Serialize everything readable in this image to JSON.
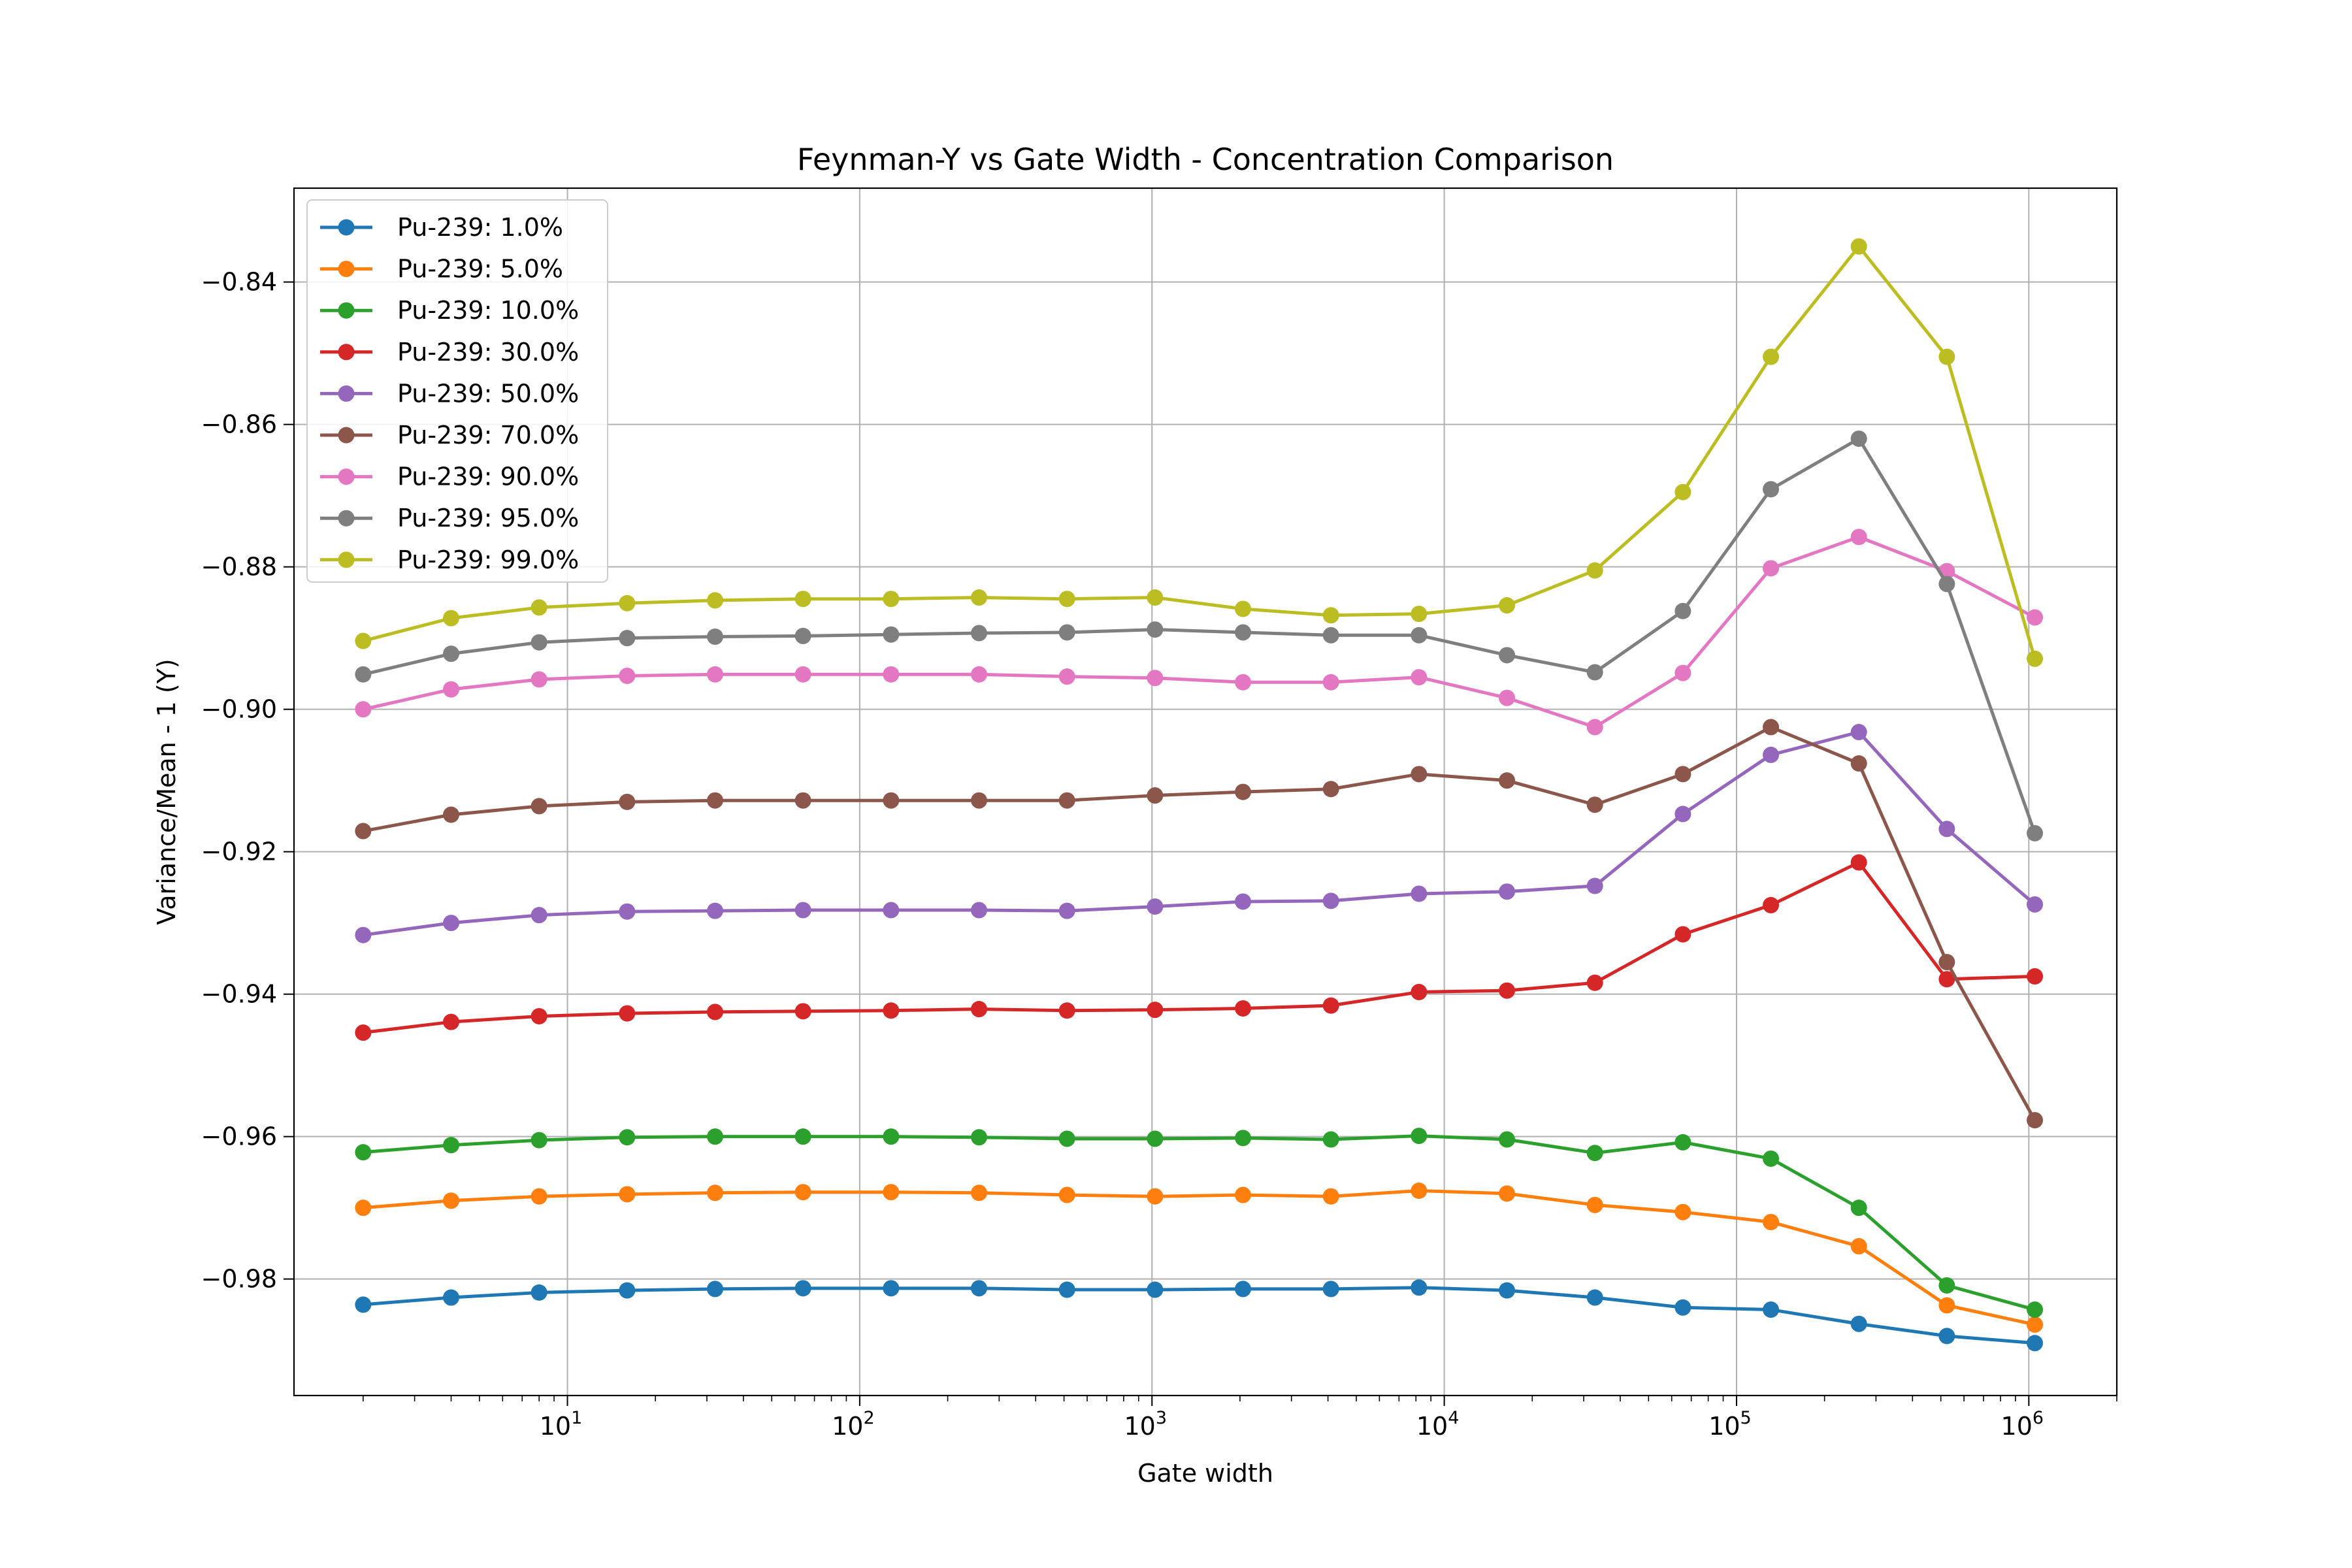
{
  "chart_data": {
    "type": "line",
    "title": "Feynman-Y vs Gate Width - Concentration Comparison",
    "xlabel": "Gate width",
    "ylabel": "Variance/Mean - 1 (Y)",
    "x_scale": "log",
    "xlim": [
      1.16,
      2000000
    ],
    "ylim": [
      -0.99636,
      -0.82682
    ],
    "grid": true,
    "legend_position": "upper left",
    "x": [
      2,
      4,
      8,
      16,
      32,
      64,
      128,
      256,
      512,
      1024,
      2048,
      4096,
      8192,
      16384,
      32768,
      65536,
      131072,
      262144,
      524288,
      1048576
    ],
    "x_ticks": [
      {
        "value": 10,
        "base": "10",
        "exp": "1"
      },
      {
        "value": 100,
        "base": "10",
        "exp": "2"
      },
      {
        "value": 1000,
        "base": "10",
        "exp": "3"
      },
      {
        "value": 10000,
        "base": "10",
        "exp": "4"
      },
      {
        "value": 100000,
        "base": "10",
        "exp": "5"
      },
      {
        "value": 1000000,
        "base": "10",
        "exp": "6"
      }
    ],
    "y_ticks": [
      {
        "value": -0.84,
        "label": "−0.84"
      },
      {
        "value": -0.86,
        "label": "−0.86"
      },
      {
        "value": -0.88,
        "label": "−0.88"
      },
      {
        "value": -0.9,
        "label": "−0.90"
      },
      {
        "value": -0.92,
        "label": "−0.92"
      },
      {
        "value": -0.94,
        "label": "−0.94"
      },
      {
        "value": -0.96,
        "label": "−0.96"
      },
      {
        "value": -0.98,
        "label": "−0.98"
      }
    ],
    "series": [
      {
        "name": "Pu-239: 1.0%",
        "color": "#1f77b4",
        "values": [
          -0.9836,
          -0.9826,
          -0.9819,
          -0.9816,
          -0.9814,
          -0.9813,
          -0.9813,
          -0.9813,
          -0.9815,
          -0.9815,
          -0.9814,
          -0.9814,
          -0.9812,
          -0.9816,
          -0.9826,
          -0.984,
          -0.9843,
          -0.9863,
          -0.988,
          -0.989
        ]
      },
      {
        "name": "Pu-239: 5.0%",
        "color": "#ff7f0e",
        "values": [
          -0.97,
          -0.969,
          -0.9684,
          -0.9681,
          -0.9679,
          -0.9678,
          -0.9678,
          -0.9679,
          -0.9682,
          -0.9684,
          -0.9682,
          -0.9684,
          -0.9676,
          -0.968,
          -0.9696,
          -0.9706,
          -0.972,
          -0.9754,
          -0.9837,
          -0.9864
        ]
      },
      {
        "name": "Pu-239: 10.0%",
        "color": "#2ca02c",
        "values": [
          -0.9622,
          -0.9612,
          -0.9605,
          -0.9601,
          -0.96,
          -0.96,
          -0.96,
          -0.9601,
          -0.9603,
          -0.9603,
          -0.9602,
          -0.9604,
          -0.9599,
          -0.9604,
          -0.9623,
          -0.9608,
          -0.9631,
          -0.97,
          -0.9809,
          -0.9843
        ]
      },
      {
        "name": "Pu-239: 30.0%",
        "color": "#d62728",
        "values": [
          -0.9454,
          -0.9439,
          -0.9431,
          -0.9427,
          -0.9425,
          -0.9424,
          -0.9423,
          -0.9421,
          -0.9423,
          -0.9422,
          -0.942,
          -0.9416,
          -0.9397,
          -0.9395,
          -0.9384,
          -0.9316,
          -0.9275,
          -0.9215,
          -0.9379,
          -0.9375
        ]
      },
      {
        "name": "Pu-239: 50.0%",
        "color": "#9467bd",
        "values": [
          -0.9317,
          -0.93,
          -0.9289,
          -0.9284,
          -0.9283,
          -0.9282,
          -0.9282,
          -0.9282,
          -0.9283,
          -0.9277,
          -0.927,
          -0.9269,
          -0.9259,
          -0.9256,
          -0.9248,
          -0.9147,
          -0.9064,
          -0.9032,
          -0.9168,
          -0.9274
        ]
      },
      {
        "name": "Pu-239: 70.0%",
        "color": "#8c564b",
        "values": [
          -0.9171,
          -0.9148,
          -0.9136,
          -0.913,
          -0.9128,
          -0.9128,
          -0.9128,
          -0.9128,
          -0.9128,
          -0.9121,
          -0.9116,
          -0.9112,
          -0.9091,
          -0.91,
          -0.9134,
          -0.9091,
          -0.9025,
          -0.9076,
          -0.9355,
          -0.9577
        ]
      },
      {
        "name": "Pu-239: 90.0%",
        "color": "#e377c2",
        "values": [
          -0.9,
          -0.8972,
          -0.8958,
          -0.8953,
          -0.8951,
          -0.8951,
          -0.8951,
          -0.8951,
          -0.8954,
          -0.8956,
          -0.8962,
          -0.8962,
          -0.8955,
          -0.8984,
          -0.9025,
          -0.8949,
          -0.8802,
          -0.8758,
          -0.8806,
          -0.8871
        ]
      },
      {
        "name": "Pu-239: 95.0%",
        "color": "#7f7f7f",
        "values": [
          -0.8951,
          -0.8922,
          -0.8906,
          -0.89,
          -0.8898,
          -0.8897,
          -0.8895,
          -0.8893,
          -0.8892,
          -0.8888,
          -0.8892,
          -0.8896,
          -0.8896,
          -0.8924,
          -0.8948,
          -0.8862,
          -0.8691,
          -0.862,
          -0.8824,
          -0.9174
        ]
      },
      {
        "name": "Pu-239: 99.0%",
        "color": "#bcbd22",
        "values": [
          -0.8904,
          -0.8872,
          -0.8857,
          -0.8851,
          -0.8847,
          -0.8845,
          -0.8845,
          -0.8843,
          -0.8845,
          -0.8843,
          -0.8859,
          -0.8868,
          -0.8866,
          -0.8854,
          -0.8805,
          -0.8695,
          -0.8505,
          -0.835,
          -0.8505,
          -0.8929
        ]
      }
    ]
  }
}
